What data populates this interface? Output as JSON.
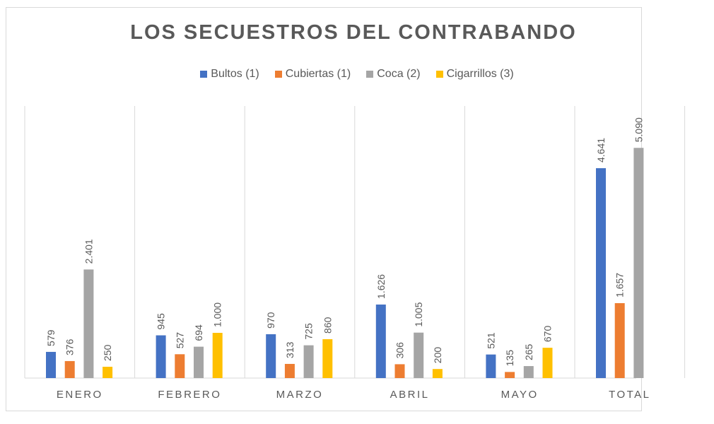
{
  "chart_data": {
    "type": "bar",
    "title": "LOS SECUESTROS DEL CONTRABANDO",
    "categories": [
      "ENERO",
      "FEBRERO",
      "MARZO",
      "ABRIL",
      "MAYO",
      "TOTAL"
    ],
    "series": [
      {
        "name": "Bultos (1)",
        "color": "#4472c4",
        "values": [
          579,
          945,
          970,
          1626,
          521,
          4641
        ],
        "labels": [
          "579",
          "945",
          "970",
          "1.626",
          "521",
          "4.641"
        ]
      },
      {
        "name": "Cubiertas (1)",
        "color": "#ed7d31",
        "values": [
          376,
          527,
          313,
          306,
          135,
          1657
        ],
        "labels": [
          "376",
          "527",
          "313",
          "306",
          "135",
          "1.657"
        ]
      },
      {
        "name": "Coca (2)",
        "color": "#a5a5a5",
        "values": [
          2401,
          694,
          725,
          1005,
          265,
          5090
        ],
        "labels": [
          "2.401",
          "694",
          "725",
          "1.005",
          "265",
          "5.090"
        ]
      },
      {
        "name": "Cigarrillos (3)",
        "color": "#ffc000",
        "values": [
          250,
          1000,
          860,
          200,
          670,
          null
        ],
        "labels": [
          "250",
          "1.000",
          "860",
          "200",
          "670",
          null
        ]
      }
    ],
    "xlabel": "",
    "ylabel": "",
    "ylim": [
      0,
      6000
    ],
    "grid": "vertical category separators",
    "legend": "top"
  }
}
